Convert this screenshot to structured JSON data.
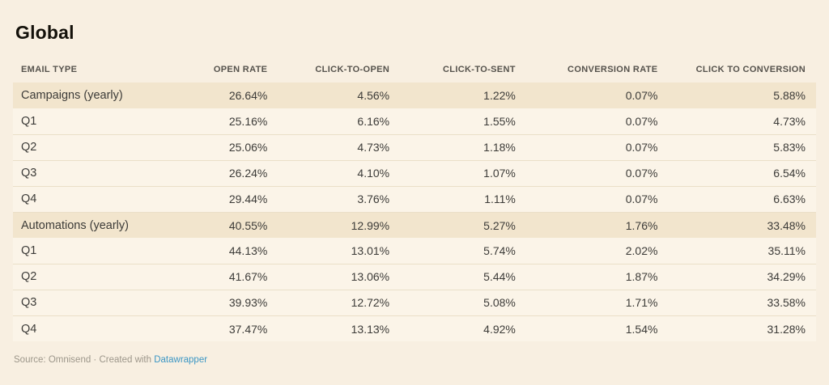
{
  "title": "Global",
  "chart_data": {
    "type": "table",
    "title": "Global",
    "columns": [
      {
        "label": "EMAIL TYPE"
      },
      {
        "label": "OPEN RATE"
      },
      {
        "label": "CLICK-TO-OPEN"
      },
      {
        "label": "CLICK-TO-SENT"
      },
      {
        "label": "CONVERSION RATE"
      },
      {
        "label": "CLICK TO CONVERSION"
      }
    ],
    "rows": [
      {
        "highlight": true,
        "cells": [
          "Campaigns (yearly)",
          "26.64%",
          "4.56%",
          "1.22%",
          "0.07%",
          "5.88%"
        ]
      },
      {
        "highlight": false,
        "cells": [
          "Q1",
          "25.16%",
          "6.16%",
          "1.55%",
          "0.07%",
          "4.73%"
        ]
      },
      {
        "highlight": false,
        "cells": [
          "Q2",
          "25.06%",
          "4.73%",
          "1.18%",
          "0.07%",
          "5.83%"
        ]
      },
      {
        "highlight": false,
        "cells": [
          "Q3",
          "26.24%",
          "4.10%",
          "1.07%",
          "0.07%",
          "6.54%"
        ]
      },
      {
        "highlight": false,
        "cells": [
          "Q4",
          "29.44%",
          "3.76%",
          "1.11%",
          "0.07%",
          "6.63%"
        ]
      },
      {
        "highlight": true,
        "cells": [
          "Automations (yearly)",
          "40.55%",
          "12.99%",
          "5.27%",
          "1.76%",
          "33.48%"
        ]
      },
      {
        "highlight": false,
        "cells": [
          "Q1",
          "44.13%",
          "13.01%",
          "5.74%",
          "2.02%",
          "35.11%"
        ]
      },
      {
        "highlight": false,
        "cells": [
          "Q2",
          "41.67%",
          "13.06%",
          "5.44%",
          "1.87%",
          "34.29%"
        ]
      },
      {
        "highlight": false,
        "cells": [
          "Q3",
          "39.93%",
          "12.72%",
          "5.08%",
          "1.71%",
          "33.58%"
        ]
      },
      {
        "highlight": false,
        "cells": [
          "Q4",
          "37.47%",
          "13.13%",
          "4.92%",
          "1.54%",
          "31.28%"
        ]
      }
    ],
    "source": "Omnisend"
  },
  "footer": {
    "prefix": "Source: Omnisend · Created with ",
    "link_label": "Datawrapper"
  },
  "colors": {
    "background": "#f8efe1",
    "row": "#fbf4e8",
    "highlight_row": "#f2e5cd",
    "separator": "#eadfc8",
    "link": "#3b96c4",
    "text": "#3c3b38",
    "header_text": "#55524c",
    "title_text": "#14110a",
    "footer_text": "#9c968a"
  }
}
